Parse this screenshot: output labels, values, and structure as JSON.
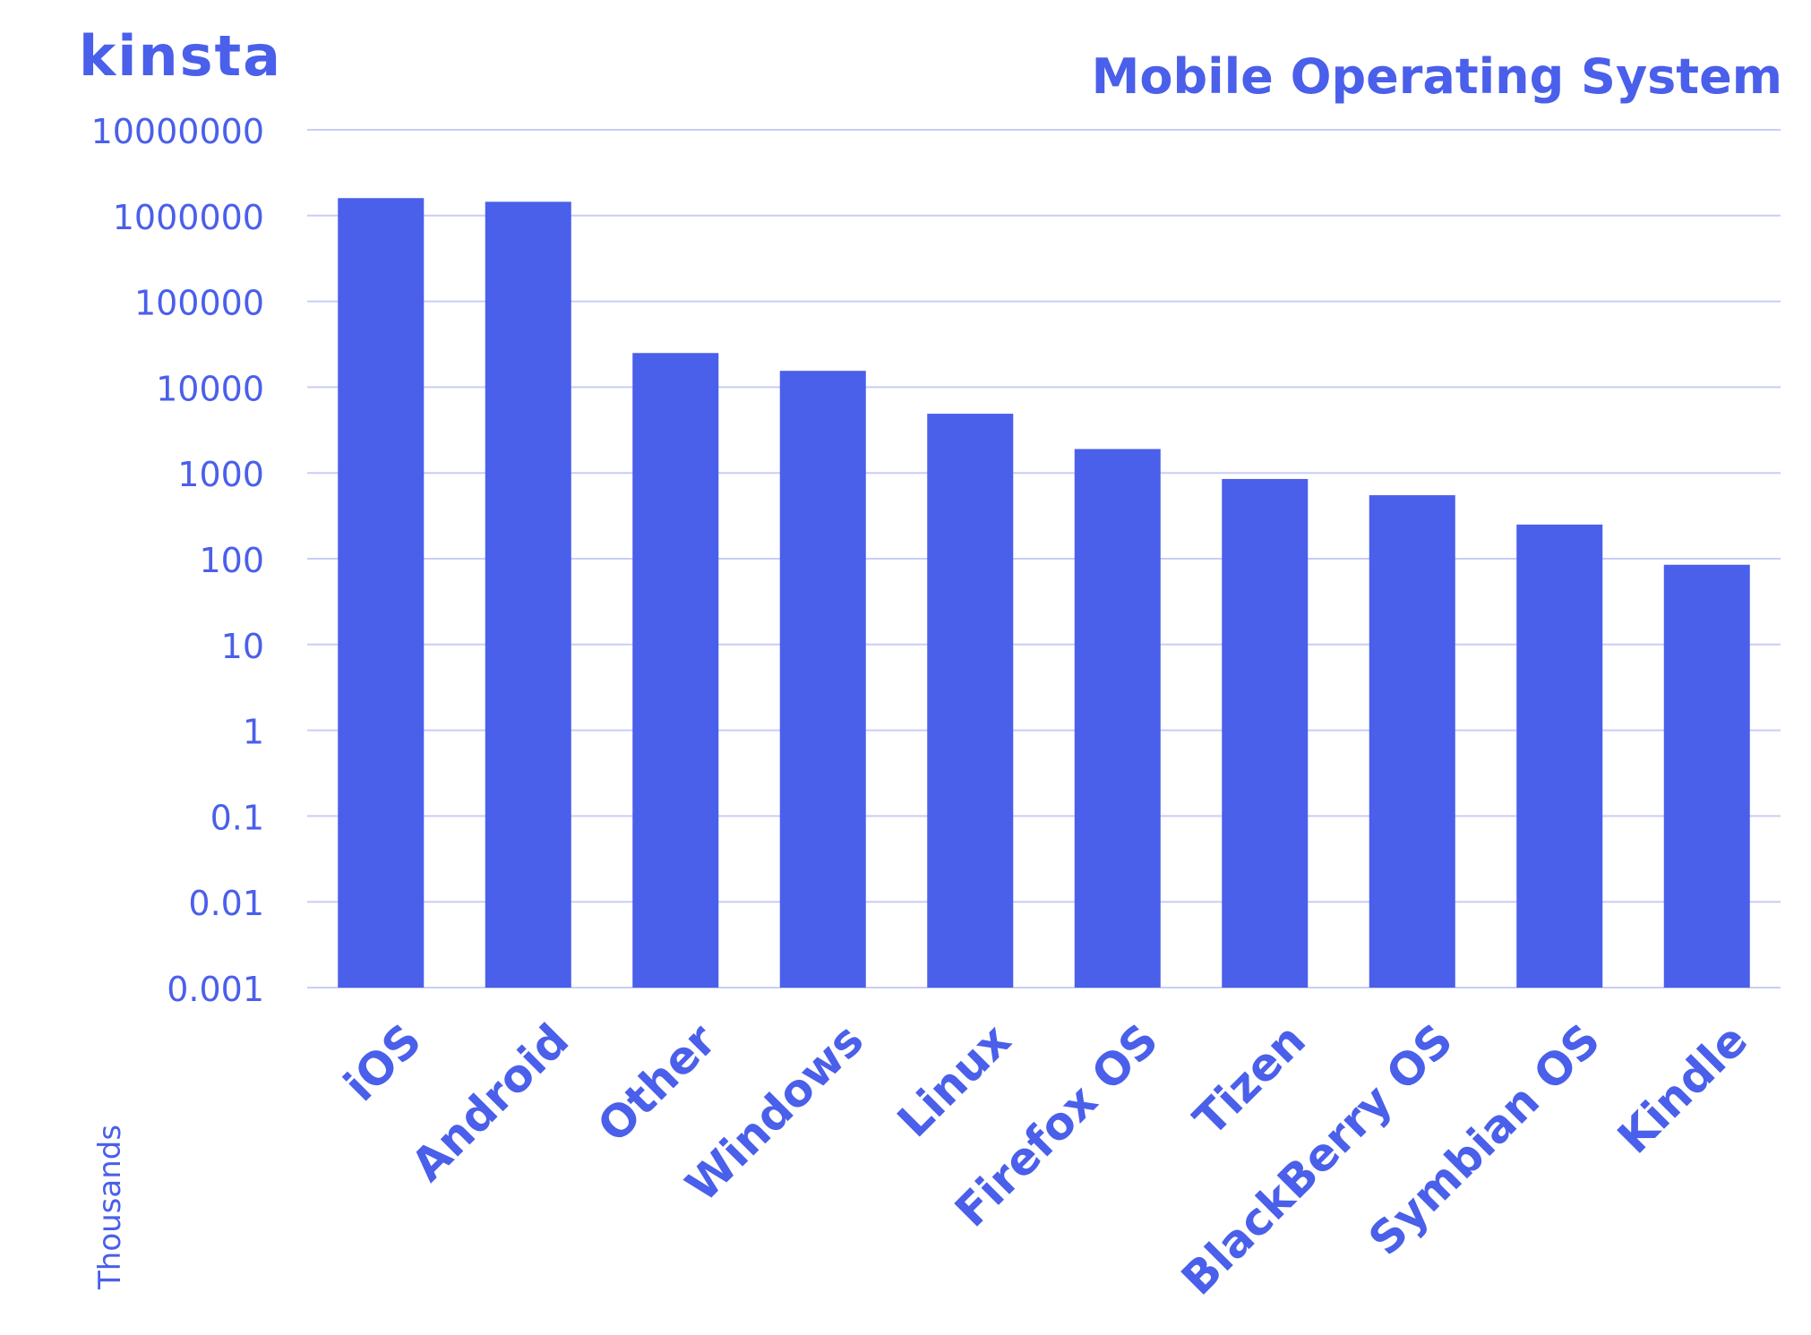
{
  "brand": {
    "logo_text": "kinsta"
  },
  "colors": {
    "bar": "#4a5fea",
    "text": "#4a5fea",
    "grid": "#c9cdf5",
    "background": "#ffffff"
  },
  "chart_data": {
    "type": "bar",
    "title": "Mobile Operating System",
    "ylabel": "Thousands",
    "xlabel": "",
    "yscale": "log",
    "ylim": [
      0.001,
      10000000
    ],
    "yticks": [
      "10000000",
      "1000000",
      "100000",
      "10000",
      "1000",
      "100",
      "10",
      "1",
      "0.1",
      "0.01",
      "0.001"
    ],
    "grid": true,
    "categories": [
      "iOS",
      "Android",
      "Other",
      "Windows",
      "Linux",
      "Firefox OS",
      "Tizen",
      "BlackBerry OS",
      "Symbian OS",
      "Kindle"
    ],
    "values": [
      1600000,
      1450000,
      25000,
      15500,
      4900,
      1900,
      850,
      550,
      250,
      85
    ]
  }
}
